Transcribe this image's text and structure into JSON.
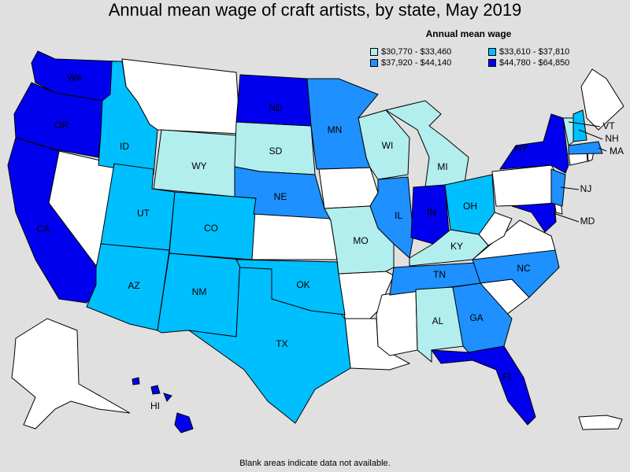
{
  "title": "Annual mean wage of craft artists, by state, May 2019",
  "legend": {
    "title": "Annual mean wage",
    "items": [
      {
        "label": "$30,770 - $33,460",
        "color": "#b2eeee"
      },
      {
        "label": "$33,610 - $37,810",
        "color": "#00bfff"
      },
      {
        "label": "$37,920 - $44,140",
        "color": "#1e90ff"
      },
      {
        "label": "$44,780 - $64,850",
        "color": "#0000ee"
      }
    ]
  },
  "colors": {
    "nodata": "#ffffff",
    "background": "#e0e0e0"
  },
  "states": [
    {
      "abbr": "WA",
      "tier": 4
    },
    {
      "abbr": "OR",
      "tier": 4
    },
    {
      "abbr": "CA",
      "tier": 4
    },
    {
      "abbr": "ID",
      "tier": 2
    },
    {
      "abbr": "UT",
      "tier": 2
    },
    {
      "abbr": "AZ",
      "tier": 2
    },
    {
      "abbr": "CO",
      "tier": 2
    },
    {
      "abbr": "NM",
      "tier": 2
    },
    {
      "abbr": "TX",
      "tier": 2
    },
    {
      "abbr": "OK",
      "tier": 2
    },
    {
      "abbr": "OH",
      "tier": 2
    },
    {
      "abbr": "NJ",
      "tier": 3
    },
    {
      "abbr": "WY",
      "tier": 1
    },
    {
      "abbr": "SD",
      "tier": 1
    },
    {
      "abbr": "MO",
      "tier": 1
    },
    {
      "abbr": "WI",
      "tier": 1
    },
    {
      "abbr": "MI",
      "tier": 1
    },
    {
      "abbr": "KY",
      "tier": 1
    },
    {
      "abbr": "AL",
      "tier": 1
    },
    {
      "abbr": "VT",
      "tier": 1
    },
    {
      "abbr": "NH",
      "tier": 2
    },
    {
      "abbr": "ND",
      "tier": 4
    },
    {
      "abbr": "NY",
      "tier": 4
    },
    {
      "abbr": "IN",
      "tier": 4
    },
    {
      "abbr": "MD",
      "tier": 4
    },
    {
      "abbr": "FL",
      "tier": 4
    },
    {
      "abbr": "HI",
      "tier": 4
    },
    {
      "abbr": "MN",
      "tier": 3
    },
    {
      "abbr": "NE",
      "tier": 3
    },
    {
      "abbr": "IL",
      "tier": 3
    },
    {
      "abbr": "TN",
      "tier": 3
    },
    {
      "abbr": "NC",
      "tier": 3
    },
    {
      "abbr": "GA",
      "tier": 3
    },
    {
      "abbr": "MA",
      "tier": 3
    }
  ],
  "note": "Blank areas indicate data not available."
}
